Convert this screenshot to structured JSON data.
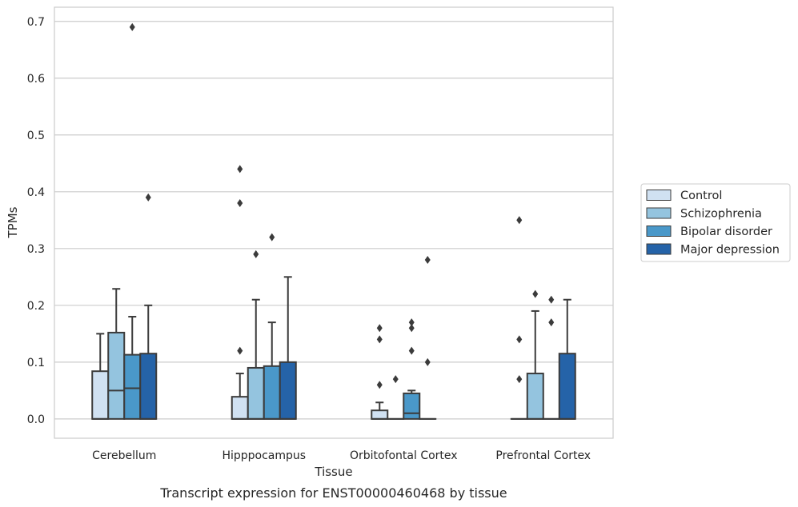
{
  "chart_data": {
    "type": "box",
    "title": "",
    "caption": "Transcript expression for ENST00000460468 by tissue",
    "xlabel": "Tissue",
    "ylabel": "TPMs",
    "ylim": [
      -0.034,
      0.725
    ],
    "yticks": [
      "0.0",
      "0.1",
      "0.2",
      "0.3",
      "0.4",
      "0.5",
      "0.6",
      "0.7"
    ],
    "ytick_values": [
      0.0,
      0.1,
      0.2,
      0.3,
      0.4,
      0.5,
      0.6,
      0.7
    ],
    "grid": true,
    "legend_position": "right",
    "categories": [
      "Cerebellum",
      "Hipppocampus",
      "Orbitofontal Cortex",
      "Prefrontal Cortex"
    ],
    "series": [
      {
        "name": "Control",
        "color": "#d0e1f2",
        "boxes": [
          {
            "whislo": 0.0,
            "q1": 0.0,
            "med": 0.0,
            "q3": 0.084,
            "whishi": 0.15,
            "fliers": []
          },
          {
            "whislo": 0.0,
            "q1": 0.0,
            "med": 0.0,
            "q3": 0.039,
            "whishi": 0.08,
            "fliers": [
              0.12,
              0.38,
              0.44
            ]
          },
          {
            "whislo": 0.0,
            "q1": 0.0,
            "med": 0.0,
            "q3": 0.015,
            "whishi": 0.029,
            "fliers": [
              0.06,
              0.14,
              0.16
            ]
          },
          {
            "whislo": 0.0,
            "q1": 0.0,
            "med": 0.0,
            "q3": 0.0,
            "whishi": 0.0,
            "fliers": [
              0.07,
              0.14,
              0.35
            ]
          }
        ]
      },
      {
        "name": "Schizophrenia",
        "color": "#94c4df",
        "boxes": [
          {
            "whislo": 0.0,
            "q1": 0.0,
            "med": 0.05,
            "q3": 0.152,
            "whishi": 0.229,
            "fliers": []
          },
          {
            "whislo": 0.0,
            "q1": 0.0,
            "med": 0.0,
            "q3": 0.09,
            "whishi": 0.21,
            "fliers": [
              0.29
            ]
          },
          {
            "whislo": 0.0,
            "q1": 0.0,
            "med": 0.0,
            "q3": 0.0,
            "whishi": 0.0,
            "fliers": [
              0.07
            ]
          },
          {
            "whislo": 0.0,
            "q1": 0.0,
            "med": 0.0,
            "q3": 0.08,
            "whishi": 0.19,
            "fliers": [
              0.22
            ]
          }
        ]
      },
      {
        "name": "Bipolar disorder",
        "color": "#4a98c9",
        "boxes": [
          {
            "whislo": 0.0,
            "q1": 0.0,
            "med": 0.054,
            "q3": 0.113,
            "whishi": 0.18,
            "fliers": [
              0.69
            ]
          },
          {
            "whislo": 0.0,
            "q1": 0.0,
            "med": 0.0,
            "q3": 0.093,
            "whishi": 0.17,
            "fliers": [
              0.32
            ]
          },
          {
            "whislo": 0.0,
            "q1": 0.0,
            "med": 0.01,
            "q3": 0.045,
            "whishi": 0.05,
            "fliers": [
              0.12,
              0.16,
              0.17
            ]
          },
          {
            "whislo": 0.0,
            "q1": 0.0,
            "med": 0.0,
            "q3": 0.0,
            "whishi": 0.0,
            "fliers": [
              0.17,
              0.21
            ]
          }
        ]
      },
      {
        "name": "Major depression",
        "color": "#2563a8",
        "boxes": [
          {
            "whislo": 0.0,
            "q1": 0.0,
            "med": 0.0,
            "q3": 0.115,
            "whishi": 0.2,
            "fliers": [
              0.39
            ]
          },
          {
            "whislo": 0.0,
            "q1": 0.0,
            "med": 0.0,
            "q3": 0.1,
            "whishi": 0.25,
            "fliers": []
          },
          {
            "whislo": 0.0,
            "q1": 0.0,
            "med": 0.0,
            "q3": 0.0,
            "whishi": 0.0,
            "fliers": [
              0.1,
              0.28
            ]
          },
          {
            "whislo": 0.0,
            "q1": 0.0,
            "med": 0.0,
            "q3": 0.115,
            "whishi": 0.21,
            "fliers": []
          }
        ]
      }
    ]
  }
}
